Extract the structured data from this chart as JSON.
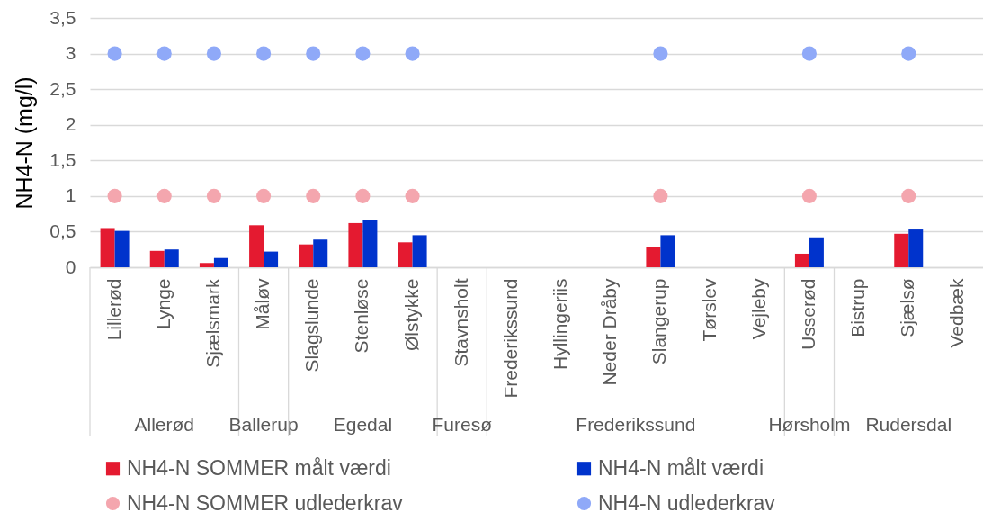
{
  "chart_data": {
    "type": "bar",
    "ylabel": "NH4-N (mg/l)",
    "categories": [
      "Lillerød",
      "Lynge",
      "Sjælsmark",
      "Måløv",
      "Slagslunde",
      "Stenløse",
      "Ølstykke",
      "Stavnsholt",
      "Frederikssund",
      "Hyllingeriis",
      "Neder Dråby",
      "Slangerup",
      "Tørslev",
      "Vejleby",
      "Usserød",
      "Bistrup",
      "Sjælsø",
      "Vedbæk"
    ],
    "series": [
      {
        "name": "NH4-N SOMMER målt værdi",
        "color": "#e41a30",
        "values": [
          0.55,
          0.23,
          0.06,
          0.59,
          0.32,
          0.62,
          0.35,
          null,
          null,
          null,
          null,
          0.28,
          null,
          null,
          0.19,
          null,
          0.47,
          null
        ]
      },
      {
        "name": "NH4-N målt værdi",
        "color": "#0033cc",
        "values": [
          0.51,
          0.25,
          0.13,
          0.22,
          0.39,
          0.67,
          0.45,
          null,
          null,
          null,
          null,
          0.45,
          null,
          null,
          0.42,
          null,
          0.53,
          null
        ]
      },
      {
        "name": "NH4-N SOMMER udlederkrav",
        "type": "scatter",
        "color": "#f4a6ae",
        "x": [
          "Lillerød",
          "Lynge",
          "Sjælsmark",
          "Måløv",
          "Slagslunde",
          "Stenløse",
          "Ølstykke",
          "Slangerup",
          "Usserød",
          "Sjælsø"
        ],
        "values": [
          1,
          1,
          1,
          1,
          1,
          1,
          1,
          1,
          1,
          1
        ]
      },
      {
        "name": "NH4-N udlederkrav",
        "type": "scatter",
        "color": "#8fa9f8",
        "x": [
          "Lillerød",
          "Lynge",
          "Sjælsmark",
          "Måløv",
          "Slagslunde",
          "Stenløse",
          "Ølstykke",
          "Slangerup",
          "Usserød",
          "Sjælsø"
        ],
        "values": [
          3,
          3,
          3,
          3,
          3,
          3,
          3,
          3,
          3,
          3
        ]
      }
    ],
    "ylim": [
      0,
      3.5
    ],
    "yticks": [
      0,
      {
        "value": 0.5,
        "label": "0,5"
      },
      1,
      {
        "value": 1.5,
        "label": "1,5"
      },
      2,
      {
        "value": 2.5,
        "label": "2,5"
      },
      3,
      {
        "value": 3.5,
        "label": "3,5"
      }
    ],
    "grid": "y",
    "legend": "bottom",
    "marker": "circle",
    "annotations": [
      "Allerød",
      "Ballerup",
      "Egedal",
      "Furesø",
      "Frederikssund",
      "Hørsholm",
      "Rudersdal"
    ]
  }
}
